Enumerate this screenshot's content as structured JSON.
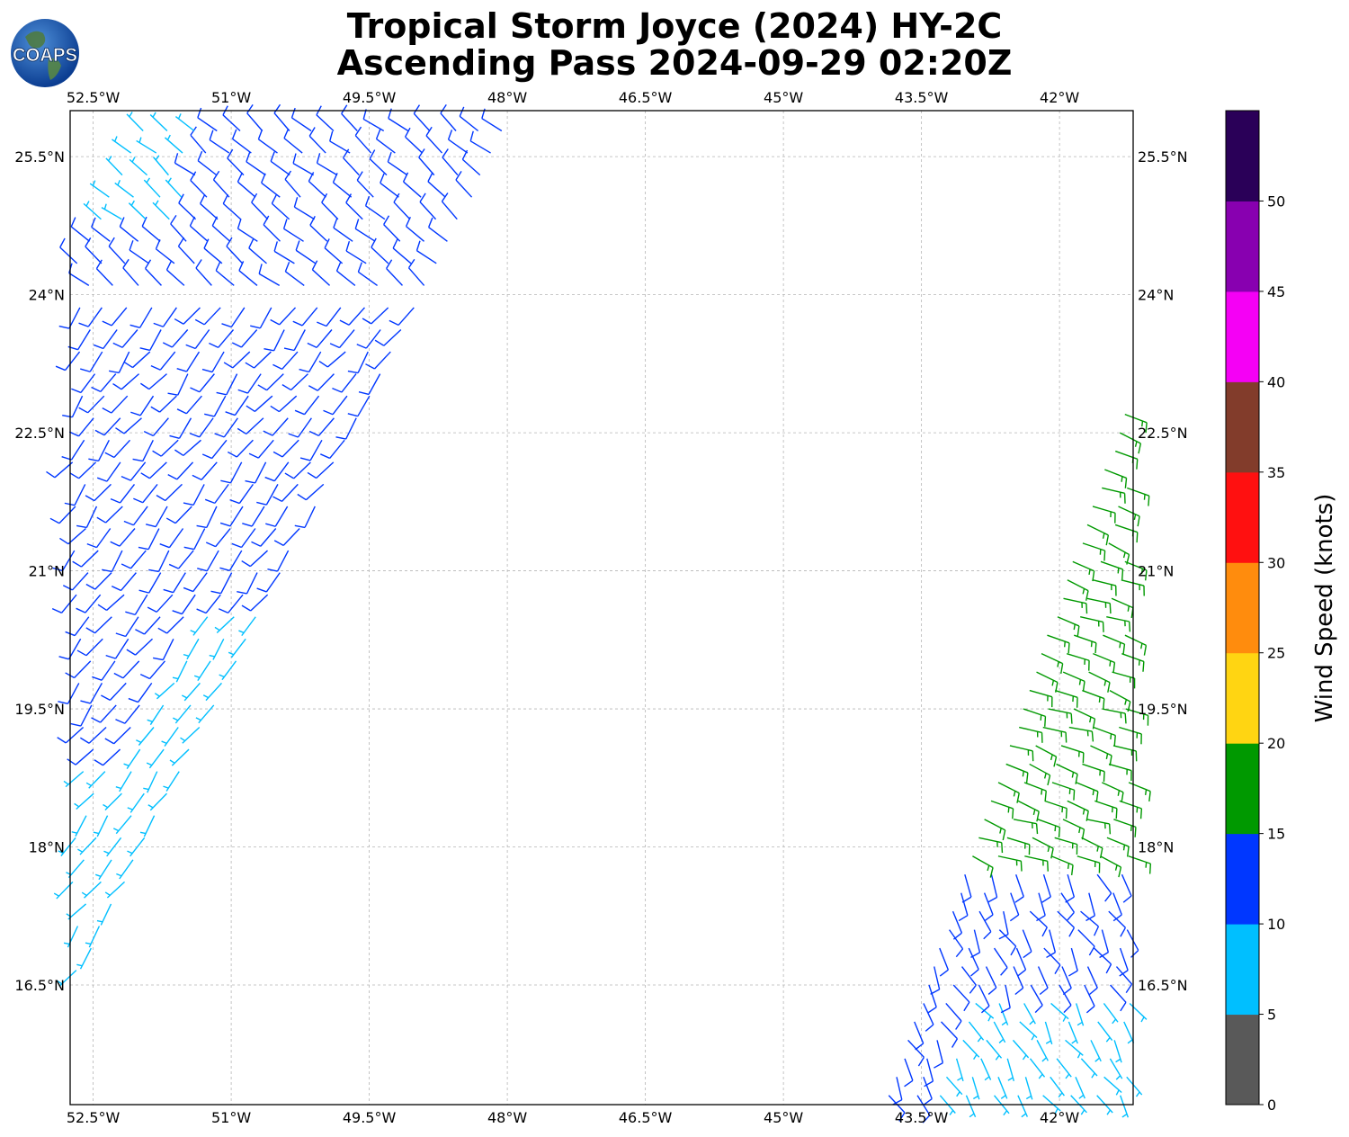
{
  "title": {
    "line1": "Tropical Storm Joyce (2024) HY-2C",
    "line2": "Ascending Pass 2024-09-29 02:20Z"
  },
  "logo": {
    "text": "COAPS",
    "icon": "globe-logo-icon"
  },
  "map": {
    "lon_range": [
      -52.75,
      -41.2
    ],
    "lat_range": [
      15.2,
      26.0
    ],
    "grid": true,
    "lon_ticks": [
      {
        "value": -52.5,
        "label": "52.5°W"
      },
      {
        "value": -51.0,
        "label": "51°W"
      },
      {
        "value": -49.5,
        "label": "49.5°W"
      },
      {
        "value": -48.0,
        "label": "48°W"
      },
      {
        "value": -46.5,
        "label": "46.5°W"
      },
      {
        "value": -45.0,
        "label": "45°W"
      },
      {
        "value": -43.5,
        "label": "43.5°W"
      },
      {
        "value": -42.0,
        "label": "42°W"
      }
    ],
    "lat_ticks": [
      {
        "value": 25.5,
        "label": "25.5°N"
      },
      {
        "value": 24.0,
        "label": "24°N"
      },
      {
        "value": 22.5,
        "label": "22.5°N"
      },
      {
        "value": 21.0,
        "label": "21°N"
      },
      {
        "value": 19.5,
        "label": "19.5°N"
      },
      {
        "value": 18.0,
        "label": "18°N"
      },
      {
        "value": 16.5,
        "label": "16.5°N"
      }
    ],
    "swaths": [
      {
        "name": "west-swath",
        "front_lon": [
          -53.2,
          -47.92
        ],
        "front_lat": [
          15.55,
          25.98
        ]
      },
      {
        "name": "east-swath",
        "front_lon": [
          -43.9,
          -41.2
        ],
        "front_lat": [
          15.2,
          23.0
        ]
      }
    ]
  },
  "colorbar": {
    "label": "Wind Speed (knots)",
    "min": 0,
    "max": 55,
    "bins": [
      {
        "from": 0,
        "to": 5,
        "color": "#595959"
      },
      {
        "from": 5,
        "to": 10,
        "color": "#00bfff"
      },
      {
        "from": 10,
        "to": 15,
        "color": "#0037ff"
      },
      {
        "from": 15,
        "to": 20,
        "color": "#009900"
      },
      {
        "from": 20,
        "to": 25,
        "color": "#ffd512"
      },
      {
        "from": 25,
        "to": 30,
        "color": "#ff8c0d"
      },
      {
        "from": 30,
        "to": 35,
        "color": "#ff1010"
      },
      {
        "from": 35,
        "to": 40,
        "color": "#823c2b"
      },
      {
        "from": 40,
        "to": 45,
        "color": "#f500f5"
      },
      {
        "from": 45,
        "to": 50,
        "color": "#8800b0"
      },
      {
        "from": 50,
        "to": 55,
        "color": "#2a0058"
      }
    ],
    "ticks": [
      "0",
      "5",
      "10",
      "15",
      "20",
      "25",
      "30",
      "35",
      "40",
      "45",
      "50"
    ]
  }
}
